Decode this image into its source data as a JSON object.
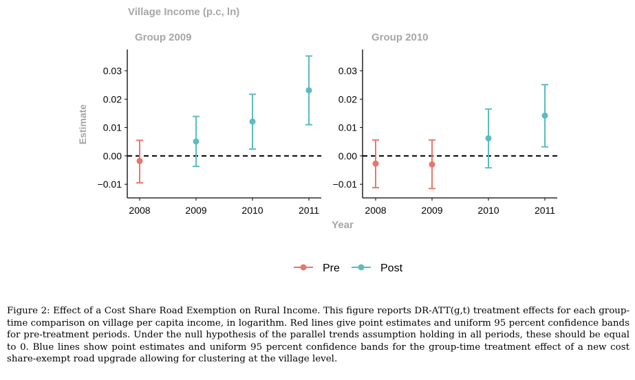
{
  "colors": {
    "pre": "#e8766b",
    "post": "#5bbcc2",
    "title_gray": "#a6a6a6"
  },
  "chart_data": {
    "type": "scatter",
    "title": "Village Income (p.c, ln)",
    "xlabel": "Year",
    "ylabel": "Estimate",
    "ylim": [
      -0.0148,
      0.0375
    ],
    "yticks": [
      -0.01,
      0.0,
      0.01,
      0.02,
      0.03
    ],
    "ytick_labels": [
      "−0.01",
      "0.00",
      "0.01",
      "0.02",
      "0.03"
    ],
    "x": [
      2008,
      2009,
      2010,
      2011
    ],
    "reference_line": 0,
    "legend": {
      "position": "bottom",
      "entries": [
        "Pre",
        "Post"
      ]
    },
    "panels": [
      {
        "title": "Group 2009",
        "points": [
          {
            "x": 2008,
            "y": -0.0018,
            "lo": -0.0095,
            "hi": 0.0055,
            "group": "Pre"
          },
          {
            "x": 2009,
            "y": 0.0051,
            "lo": -0.0037,
            "hi": 0.0139,
            "group": "Post"
          },
          {
            "x": 2010,
            "y": 0.0121,
            "lo": 0.0024,
            "hi": 0.0217,
            "group": "Post"
          },
          {
            "x": 2011,
            "y": 0.0231,
            "lo": 0.011,
            "hi": 0.0352,
            "group": "Post"
          }
        ]
      },
      {
        "title": "Group 2010",
        "points": [
          {
            "x": 2008,
            "y": -0.0027,
            "lo": -0.0112,
            "hi": 0.0056,
            "group": "Pre"
          },
          {
            "x": 2009,
            "y": -0.003,
            "lo": -0.0115,
            "hi": 0.0056,
            "group": "Pre"
          },
          {
            "x": 2010,
            "y": 0.0062,
            "lo": -0.0042,
            "hi": 0.0165,
            "group": "Post"
          },
          {
            "x": 2011,
            "y": 0.0142,
            "lo": 0.0032,
            "hi": 0.0251,
            "group": "Post"
          }
        ]
      }
    ]
  },
  "caption": "Figure 2: Effect of a Cost Share Road Exemption on Rural Income. This figure reports DR-ATT(g,t) treatment effects for each group-time comparison on village per capita income, in logarithm. Red lines give point estimates and uniform 95 percent confidence bands for pre-treatment periods. Under the null hypothesis of the parallel trends assumption holding in all periods, these should be equal to 0. Blue lines show point estimates and uniform 95 percent confidence bands for the group-time treatment effect of a new cost share-exempt road upgrade allowing for clustering at the village level."
}
